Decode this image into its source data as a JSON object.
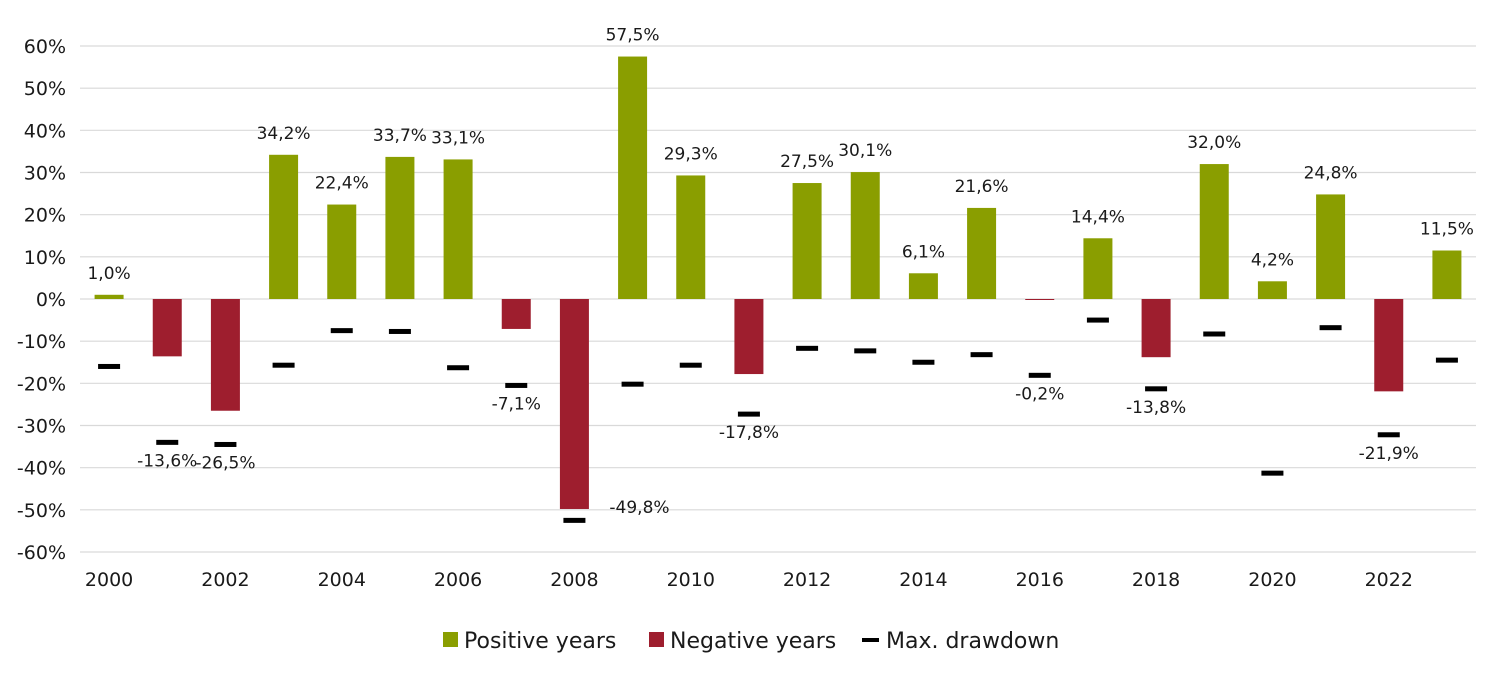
{
  "chart_data": {
    "type": "bar",
    "categories": [
      "2000",
      "2001",
      "2002",
      "2003",
      "2004",
      "2005",
      "2006",
      "2007",
      "2008",
      "2009",
      "2010",
      "2011",
      "2012",
      "2013",
      "2014",
      "2015",
      "2016",
      "2017",
      "2018",
      "2019",
      "2020",
      "2021",
      "2022",
      "2023"
    ],
    "x_tick_labels": [
      "2000",
      "2002",
      "2004",
      "2006",
      "2008",
      "2010",
      "2012",
      "2014",
      "2016",
      "2018",
      "2020",
      "2022"
    ],
    "values": [
      1.0,
      -13.6,
      -26.5,
      34.2,
      22.4,
      33.7,
      33.1,
      -7.1,
      -49.8,
      57.5,
      29.3,
      -17.8,
      27.5,
      30.1,
      6.1,
      21.6,
      -0.2,
      14.4,
      -13.8,
      32.0,
      4.2,
      24.8,
      -21.9,
      11.5
    ],
    "data_labels": [
      "1,0%",
      "-13,6%",
      "-26,5%",
      "34,2%",
      "22,4%",
      "33,7%",
      "33,1%",
      "-7,1%",
      "-49,8%",
      "57,5%",
      "29,3%",
      "-17,8%",
      "27,5%",
      "30,1%",
      "6,1%",
      "21,6%",
      "-0,2%",
      "14,4%",
      "-13,8%",
      "32,0%",
      "4,2%",
      "24,8%",
      "-21,9%",
      "11,5%"
    ],
    "max_drawdown": [
      -16,
      -34,
      -34.5,
      -15.7,
      -7.5,
      -7.7,
      -16.3,
      -20.5,
      -52.5,
      -20.2,
      -15.7,
      -27.3,
      -11.7,
      -12.3,
      -15,
      -13.2,
      -18.1,
      -5,
      -21.3,
      -8.3,
      -41.3,
      -6.8,
      -32.2,
      -14.5
    ],
    "series": [
      {
        "name": "Positive years",
        "color": "#8a9e00"
      },
      {
        "name": "Negative years",
        "color": "#9e1e2e"
      },
      {
        "name": "Max. drawdown",
        "color": "#000000"
      }
    ],
    "ylim": [
      -60,
      60
    ],
    "y_ticks": [
      60,
      50,
      40,
      30,
      20,
      10,
      0,
      -10,
      -20,
      -30,
      -40,
      -50,
      -60
    ],
    "y_tick_labels": [
      "60%",
      "50%",
      "40%",
      "30%",
      "20%",
      "10%",
      "0%",
      "-10%",
      "-20%",
      "-30%",
      "-40%",
      "-50%",
      "-60%"
    ],
    "grid": true,
    "legend_position": "bottom",
    "title": "",
    "xlabel": "",
    "ylabel": ""
  }
}
